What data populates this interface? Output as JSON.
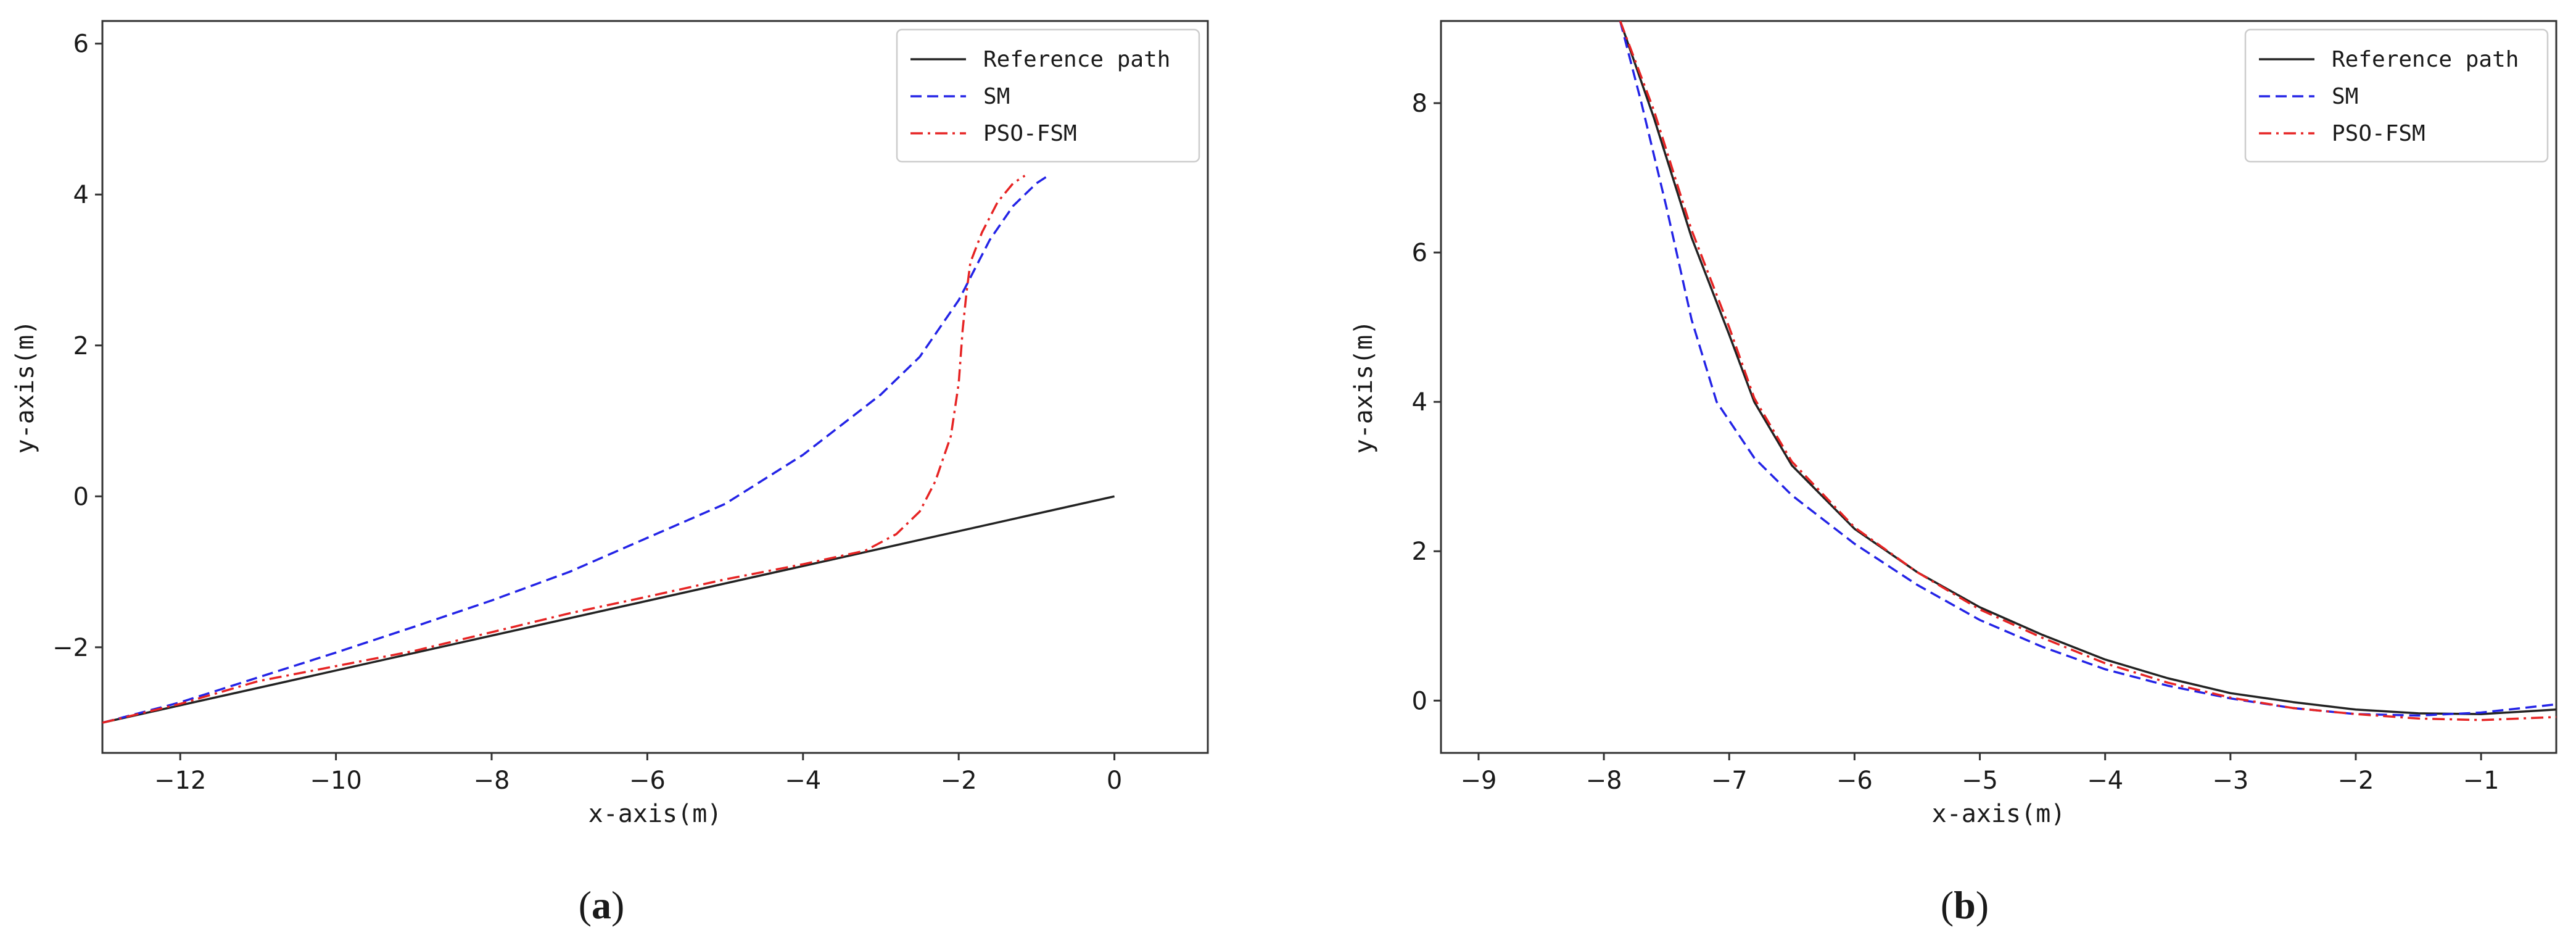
{
  "figure": {
    "captions": [
      "(a)",
      "(b)"
    ],
    "caption_parts": [
      {
        "open": "(",
        "letter": "a",
        "close": ")"
      },
      {
        "open": "(",
        "letter": "b",
        "close": ")"
      }
    ]
  },
  "colors": {
    "reference": "#222222",
    "sm": "#2323e6",
    "pso_fsm": "#e62323",
    "frame": "#333333"
  },
  "chart_data": [
    {
      "type": "line",
      "panel": "a",
      "xlabel": "x-axis(m)",
      "ylabel": "y-axis(m)",
      "xlim": [
        -13,
        1.2
      ],
      "ylim": [
        -3.4,
        6.3
      ],
      "xticks": [
        -12,
        -10,
        -8,
        -6,
        -4,
        -2,
        0
      ],
      "xtick_labels": [
        "−12",
        "−10",
        "−8",
        "−6",
        "−4",
        "−2",
        "0"
      ],
      "yticks": [
        -2,
        0,
        2,
        4,
        6
      ],
      "ytick_labels": [
        "−2",
        "0",
        "2",
        "4",
        "6"
      ],
      "legend_position": "top-right",
      "series": [
        {
          "name": "Reference path",
          "style": "solid",
          "color": "#222222",
          "x": [
            -13,
            0
          ],
          "y": [
            -3.0,
            0.0
          ]
        },
        {
          "name": "SM",
          "style": "dashed",
          "color": "#2323e6",
          "x": [
            -13,
            -12,
            -11,
            -10,
            -9,
            -8,
            -7,
            -6,
            -5,
            -4,
            -3,
            -2.5,
            -2,
            -1.6,
            -1.3,
            -1.0,
            -0.85
          ],
          "y": [
            -3.0,
            -2.73,
            -2.4,
            -2.07,
            -1.73,
            -1.38,
            -1.0,
            -0.55,
            -0.1,
            0.55,
            1.35,
            1.85,
            2.6,
            3.4,
            3.85,
            4.15,
            4.25
          ]
        },
        {
          "name": "PSO-FSM",
          "style": "dashdot",
          "color": "#e62323",
          "x": [
            -13,
            -12,
            -11,
            -10,
            -9,
            -8,
            -7,
            -6,
            -5,
            -4,
            -3.2,
            -2.8,
            -2.5,
            -2.3,
            -2.1,
            -2.0,
            -1.95,
            -1.9,
            -1.85,
            -1.7,
            -1.5,
            -1.3,
            -1.15
          ],
          "y": [
            -3.0,
            -2.75,
            -2.45,
            -2.25,
            -2.05,
            -1.8,
            -1.55,
            -1.33,
            -1.1,
            -0.9,
            -0.72,
            -0.5,
            -0.2,
            0.2,
            0.8,
            1.5,
            2.2,
            2.7,
            3.1,
            3.5,
            3.9,
            4.15,
            4.25
          ]
        }
      ]
    },
    {
      "type": "line",
      "panel": "b",
      "xlabel": "x-axis(m)",
      "ylabel": "y-axis(m)",
      "xlim": [
        -9.3,
        -0.4
      ],
      "ylim": [
        -0.7,
        9.1
      ],
      "xticks": [
        -9,
        -8,
        -7,
        -6,
        -5,
        -4,
        -3,
        -2,
        -1
      ],
      "xtick_labels": [
        "−9",
        "−8",
        "−7",
        "−6",
        "−5",
        "−4",
        "−3",
        "−2",
        "−1"
      ],
      "yticks": [
        0,
        2,
        4,
        6,
        8
      ],
      "ytick_labels": [
        "0",
        "2",
        "4",
        "6",
        "8"
      ],
      "legend_position": "top-right",
      "series": [
        {
          "name": "Reference path",
          "style": "solid",
          "color": "#222222",
          "x": [
            -7.87,
            -7.6,
            -7.3,
            -7.0,
            -6.8,
            -6.5,
            -6.0,
            -5.5,
            -5.0,
            -4.5,
            -4.0,
            -3.5,
            -3.0,
            -2.5,
            -2.0,
            -1.5,
            -1.0,
            -0.4
          ],
          "y": [
            9.1,
            7.8,
            6.2,
            4.9,
            4.0,
            3.15,
            2.3,
            1.72,
            1.25,
            0.88,
            0.55,
            0.3,
            0.1,
            -0.02,
            -0.12,
            -0.17,
            -0.18,
            -0.12
          ]
        },
        {
          "name": "SM",
          "style": "dashed",
          "color": "#2323e6",
          "x": [
            -7.87,
            -7.7,
            -7.5,
            -7.3,
            -7.1,
            -6.8,
            -6.5,
            -6.0,
            -5.5,
            -5.0,
            -4.5,
            -4.0,
            -3.5,
            -3.0,
            -2.5,
            -2.0,
            -1.5,
            -1.0,
            -0.4
          ],
          "y": [
            9.1,
            8.0,
            6.6,
            5.1,
            4.0,
            3.25,
            2.75,
            2.1,
            1.55,
            1.08,
            0.72,
            0.42,
            0.2,
            0.03,
            -0.1,
            -0.18,
            -0.2,
            -0.16,
            -0.05
          ]
        },
        {
          "name": "PSO-FSM",
          "style": "dashdot",
          "color": "#e62323",
          "x": [
            -7.87,
            -7.6,
            -7.3,
            -7.0,
            -6.8,
            -6.5,
            -6.0,
            -5.5,
            -5.0,
            -4.5,
            -4.0,
            -3.5,
            -3.0,
            -2.5,
            -2.0,
            -1.5,
            -1.0,
            -0.4
          ],
          "y": [
            9.1,
            7.9,
            6.3,
            5.0,
            4.05,
            3.2,
            2.32,
            1.72,
            1.22,
            0.84,
            0.5,
            0.24,
            0.04,
            -0.1,
            -0.18,
            -0.24,
            -0.26,
            -0.22
          ]
        }
      ]
    }
  ]
}
